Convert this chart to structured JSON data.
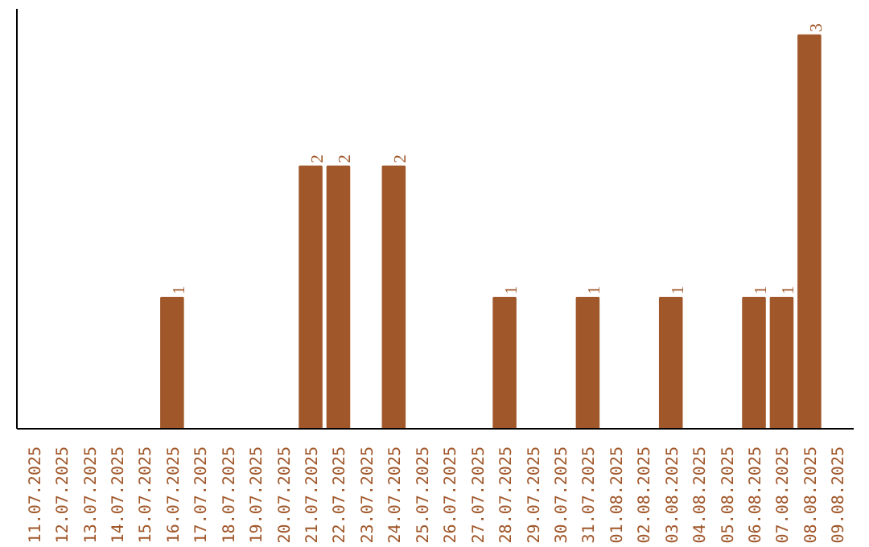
{
  "chart_data": {
    "type": "bar",
    "categories": [
      "11.07.2025",
      "12.07.2025",
      "13.07.2025",
      "14.07.2025",
      "15.07.2025",
      "16.07.2025",
      "17.07.2025",
      "18.07.2025",
      "19.07.2025",
      "20.07.2025",
      "21.07.2025",
      "22.07.2025",
      "23.07.2025",
      "24.07.2025",
      "25.07.2025",
      "26.07.2025",
      "27.07.2025",
      "28.07.2025",
      "29.07.2025",
      "30.07.2025",
      "31.07.2025",
      "01.08.2025",
      "02.08.2025",
      "03.08.2025",
      "04.08.2025",
      "05.08.2025",
      "06.08.2025",
      "07.08.2025",
      "08.08.2025",
      "09.08.2025"
    ],
    "values": [
      0,
      0,
      0,
      0,
      0,
      1,
      0,
      0,
      0,
      0,
      2,
      2,
      0,
      2,
      0,
      0,
      0,
      1,
      0,
      0,
      1,
      0,
      0,
      1,
      0,
      0,
      1,
      1,
      3,
      0
    ],
    "value_labels": [
      null,
      null,
      null,
      null,
      null,
      "1",
      null,
      null,
      null,
      null,
      "2",
      "2",
      null,
      "2",
      null,
      null,
      null,
      "1",
      null,
      null,
      "1",
      null,
      null,
      "1",
      null,
      null,
      "1",
      "1",
      "3",
      null
    ],
    "color": "#a0572a",
    "ylim": [
      0,
      3.2
    ],
    "tick_labels": "x",
    "grid": false
  }
}
